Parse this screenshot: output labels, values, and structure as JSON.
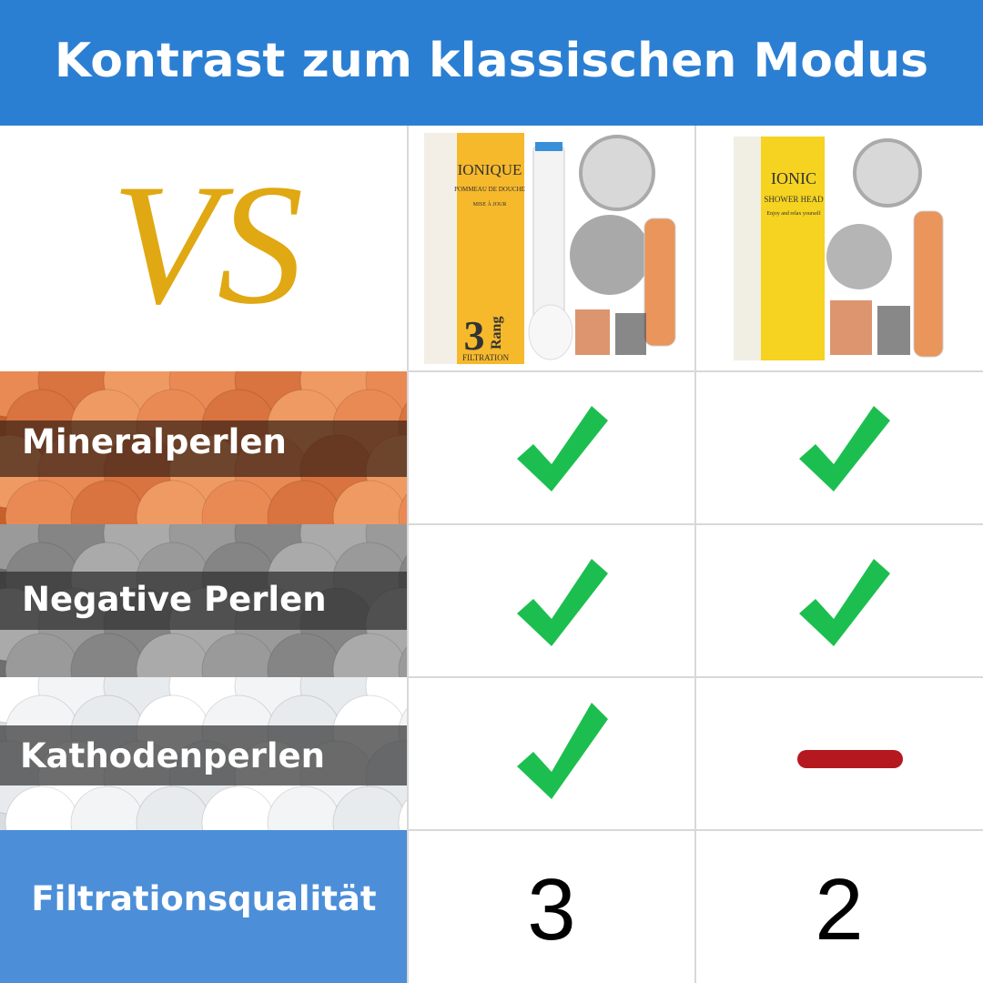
{
  "header": {
    "title": "Kontrast zum klassischen Modus"
  },
  "table": {
    "vs": "VS",
    "products": [
      {
        "name": "IONIQUE",
        "subtitle": "POMMEAU DE DOUCHE",
        "note": "MISE À JOUR",
        "rank_number": "3",
        "rank_word": "Rang",
        "filtration": "FILTRATION"
      },
      {
        "name": "IONIC",
        "subtitle": "SHOWER HEAD",
        "note": "Enjoy and relax yourself"
      }
    ],
    "rows": [
      {
        "label": "Mineralperlen"
      },
      {
        "label": "Negative Perlen"
      },
      {
        "label": "Kathodenperlen"
      },
      {
        "label": "Filtrationsqualität",
        "values": [
          "3",
          "2"
        ]
      }
    ]
  }
}
